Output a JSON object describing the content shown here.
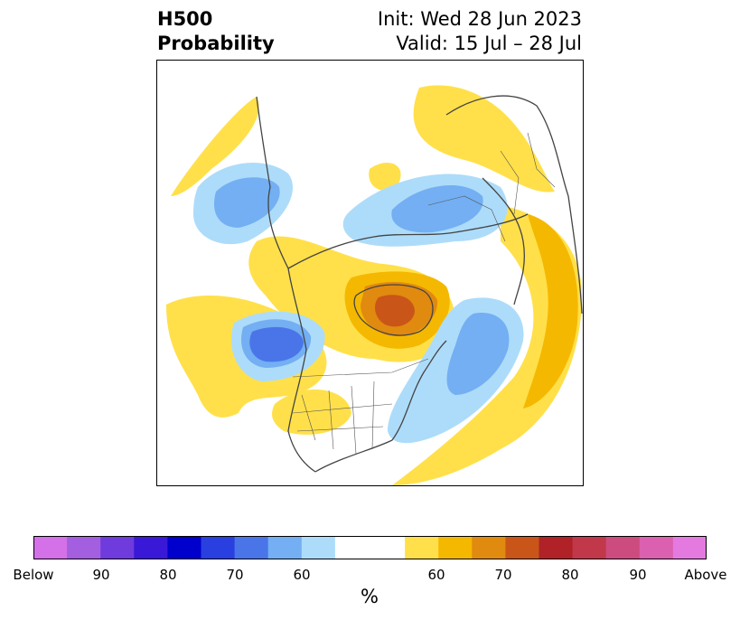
{
  "header": {
    "title_line1": "H500",
    "title_line2": "Probability",
    "init_text": "Init: Wed 28 Jun 2023",
    "valid_text": "Valid: 15 Jul – 28 Jul"
  },
  "colorbar": {
    "unit": "%",
    "colors": [
      "#d470e8",
      "#a45ee0",
      "#6f3bdc",
      "#3a18d8",
      "#0000cc",
      "#2a3fdf",
      "#4a75e8",
      "#73aff2",
      "#addcfa",
      "#ffffff",
      "#ffe04a",
      "#f5b800",
      "#e08a10",
      "#c95518",
      "#b02228",
      "#c0384a",
      "#cc4c80",
      "#dc60b0",
      "#e47ae0"
    ],
    "tick_labels": [
      "Below",
      "90",
      "80",
      "70",
      "60",
      "60",
      "70",
      "80",
      "90",
      "Above"
    ]
  },
  "legend_colors": {
    "blue_light": "#addcfa",
    "blue_mid": "#73aff2",
    "blue_dark": "#4a75e8",
    "yellow": "#ffe04a",
    "gold": "#f5b800",
    "orange": "#e08a10",
    "rust": "#c95518"
  }
}
